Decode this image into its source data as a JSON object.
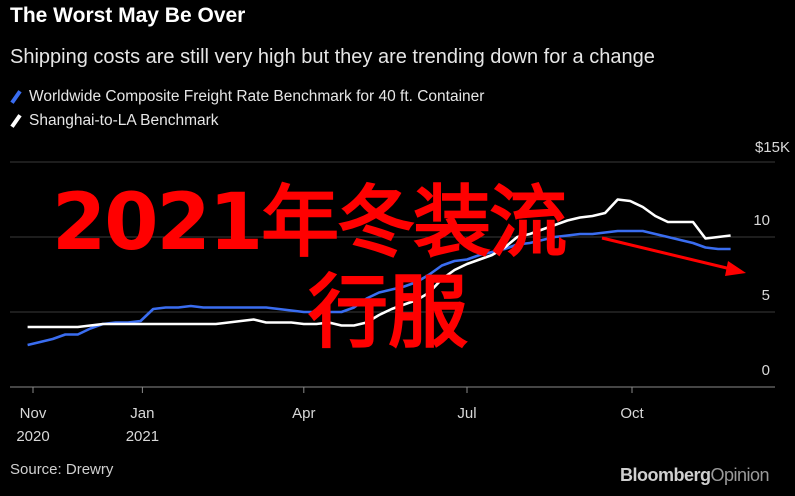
{
  "title": "The Worst May Be Over",
  "subtitle": "Shipping costs are still very high but they are trending down for a change",
  "source": "Source: Drewry",
  "brand": {
    "main": "Bloomberg",
    "light": "Opinion"
  },
  "overlay": {
    "line1": "2021年冬装流",
    "line2": "行服"
  },
  "colors": {
    "background": "#000000",
    "worldwide": "#3a6df0",
    "shanghai": "#ffffff",
    "grid": "#3a3a3a",
    "overlay": "#ff0000"
  },
  "chart_data": {
    "type": "line",
    "title": "The Worst May Be Over",
    "subtitle": "Shipping costs are still very high but they are trending down for a change",
    "xlabel": "",
    "ylabel": "",
    "ylim": [
      0,
      15
    ],
    "y_unit": "$",
    "y_ticks": [
      {
        "value": 15,
        "label": "$15K"
      },
      {
        "value": 10,
        "label": "10"
      },
      {
        "value": 5,
        "label": "5"
      },
      {
        "value": 0,
        "label": "0"
      }
    ],
    "x_ticks": [
      {
        "date": "2020-11-01",
        "label": "Nov",
        "year": "2020"
      },
      {
        "date": "2021-01-01",
        "label": "Jan",
        "year": "2021"
      },
      {
        "date": "2021-04-01",
        "label": "Apr",
        "year": ""
      },
      {
        "date": "2021-07-01",
        "label": "Jul",
        "year": ""
      },
      {
        "date": "2021-10-01",
        "label": "Oct",
        "year": ""
      }
    ],
    "grid": true,
    "legend": "top-left",
    "series": [
      {
        "name": "Worldwide Composite Freight Rate Benchmark for 40 ft. Container",
        "color": "#3a6df0",
        "points": [
          [
            "2020-10-29",
            2.8
          ],
          [
            "2020-11-05",
            3.0
          ],
          [
            "2020-11-12",
            3.2
          ],
          [
            "2020-11-19",
            3.5
          ],
          [
            "2020-11-26",
            3.5
          ],
          [
            "2020-12-03",
            3.9
          ],
          [
            "2020-12-10",
            4.2
          ],
          [
            "2020-12-17",
            4.3
          ],
          [
            "2020-12-24",
            4.3
          ],
          [
            "2020-12-31",
            4.4
          ],
          [
            "2021-01-07",
            5.2
          ],
          [
            "2021-01-14",
            5.3
          ],
          [
            "2021-01-21",
            5.3
          ],
          [
            "2021-01-28",
            5.4
          ],
          [
            "2021-02-04",
            5.3
          ],
          [
            "2021-02-11",
            5.3
          ],
          [
            "2021-02-18",
            5.3
          ],
          [
            "2021-02-25",
            5.3
          ],
          [
            "2021-03-04",
            5.3
          ],
          [
            "2021-03-11",
            5.3
          ],
          [
            "2021-03-18",
            5.2
          ],
          [
            "2021-03-25",
            5.1
          ],
          [
            "2021-04-01",
            5.0
          ],
          [
            "2021-04-08",
            5.0
          ],
          [
            "2021-04-15",
            5.0
          ],
          [
            "2021-04-22",
            5.0
          ],
          [
            "2021-04-29",
            5.3
          ],
          [
            "2021-05-06",
            5.9
          ],
          [
            "2021-05-13",
            6.3
          ],
          [
            "2021-05-20",
            6.5
          ],
          [
            "2021-05-27",
            6.7
          ],
          [
            "2021-06-03",
            7.0
          ],
          [
            "2021-06-10",
            7.5
          ],
          [
            "2021-06-17",
            8.1
          ],
          [
            "2021-06-24",
            8.4
          ],
          [
            "2021-07-01",
            8.5
          ],
          [
            "2021-07-08",
            8.8
          ],
          [
            "2021-07-15",
            9.0
          ],
          [
            "2021-07-22",
            9.2
          ],
          [
            "2021-07-29",
            9.5
          ],
          [
            "2021-08-05",
            9.6
          ],
          [
            "2021-08-12",
            9.8
          ],
          [
            "2021-08-19",
            10.0
          ],
          [
            "2021-08-26",
            10.1
          ],
          [
            "2021-09-02",
            10.2
          ],
          [
            "2021-09-09",
            10.2
          ],
          [
            "2021-09-16",
            10.3
          ],
          [
            "2021-09-23",
            10.4
          ],
          [
            "2021-09-30",
            10.4
          ],
          [
            "2021-10-07",
            10.4
          ],
          [
            "2021-10-14",
            10.2
          ],
          [
            "2021-10-21",
            10.0
          ],
          [
            "2021-10-28",
            9.8
          ],
          [
            "2021-11-04",
            9.6
          ],
          [
            "2021-11-11",
            9.3
          ],
          [
            "2021-11-18",
            9.2
          ],
          [
            "2021-11-25",
            9.2
          ]
        ]
      },
      {
        "name": "Shanghai-to-LA Benchmark",
        "color": "#ffffff",
        "points": [
          [
            "2020-10-29",
            4.0
          ],
          [
            "2020-11-05",
            4.0
          ],
          [
            "2020-11-12",
            4.0
          ],
          [
            "2020-11-19",
            4.0
          ],
          [
            "2020-11-26",
            4.0
          ],
          [
            "2020-12-03",
            4.1
          ],
          [
            "2020-12-10",
            4.2
          ],
          [
            "2020-12-17",
            4.2
          ],
          [
            "2020-12-24",
            4.2
          ],
          [
            "2020-12-31",
            4.2
          ],
          [
            "2021-01-07",
            4.2
          ],
          [
            "2021-01-14",
            4.2
          ],
          [
            "2021-01-21",
            4.2
          ],
          [
            "2021-01-28",
            4.2
          ],
          [
            "2021-02-04",
            4.2
          ],
          [
            "2021-02-11",
            4.2
          ],
          [
            "2021-02-18",
            4.3
          ],
          [
            "2021-02-25",
            4.4
          ],
          [
            "2021-03-04",
            4.5
          ],
          [
            "2021-03-11",
            4.3
          ],
          [
            "2021-03-18",
            4.3
          ],
          [
            "2021-03-25",
            4.3
          ],
          [
            "2021-04-01",
            4.2
          ],
          [
            "2021-04-08",
            4.2
          ],
          [
            "2021-04-15",
            4.3
          ],
          [
            "2021-04-22",
            4.1
          ],
          [
            "2021-04-29",
            4.1
          ],
          [
            "2021-05-06",
            4.3
          ],
          [
            "2021-05-13",
            4.8
          ],
          [
            "2021-05-20",
            5.2
          ],
          [
            "2021-05-27",
            5.5
          ],
          [
            "2021-06-03",
            5.8
          ],
          [
            "2021-06-10",
            6.3
          ],
          [
            "2021-06-17",
            7.2
          ],
          [
            "2021-06-24",
            7.8
          ],
          [
            "2021-07-01",
            8.2
          ],
          [
            "2021-07-08",
            8.5
          ],
          [
            "2021-07-15",
            8.8
          ],
          [
            "2021-07-22",
            9.3
          ],
          [
            "2021-07-29",
            10.0
          ],
          [
            "2021-08-05",
            10.2
          ],
          [
            "2021-08-12",
            10.5
          ],
          [
            "2021-08-19",
            10.8
          ],
          [
            "2021-08-26",
            11.1
          ],
          [
            "2021-09-02",
            11.3
          ],
          [
            "2021-09-09",
            11.4
          ],
          [
            "2021-09-16",
            11.6
          ],
          [
            "2021-09-23",
            12.5
          ],
          [
            "2021-09-30",
            12.4
          ],
          [
            "2021-10-07",
            12.0
          ],
          [
            "2021-10-14",
            11.4
          ],
          [
            "2021-10-21",
            11.0
          ],
          [
            "2021-10-28",
            11.0
          ],
          [
            "2021-11-04",
            11.0
          ],
          [
            "2021-11-11",
            9.9
          ],
          [
            "2021-11-18",
            10.0
          ],
          [
            "2021-11-25",
            10.1
          ]
        ]
      }
    ]
  }
}
